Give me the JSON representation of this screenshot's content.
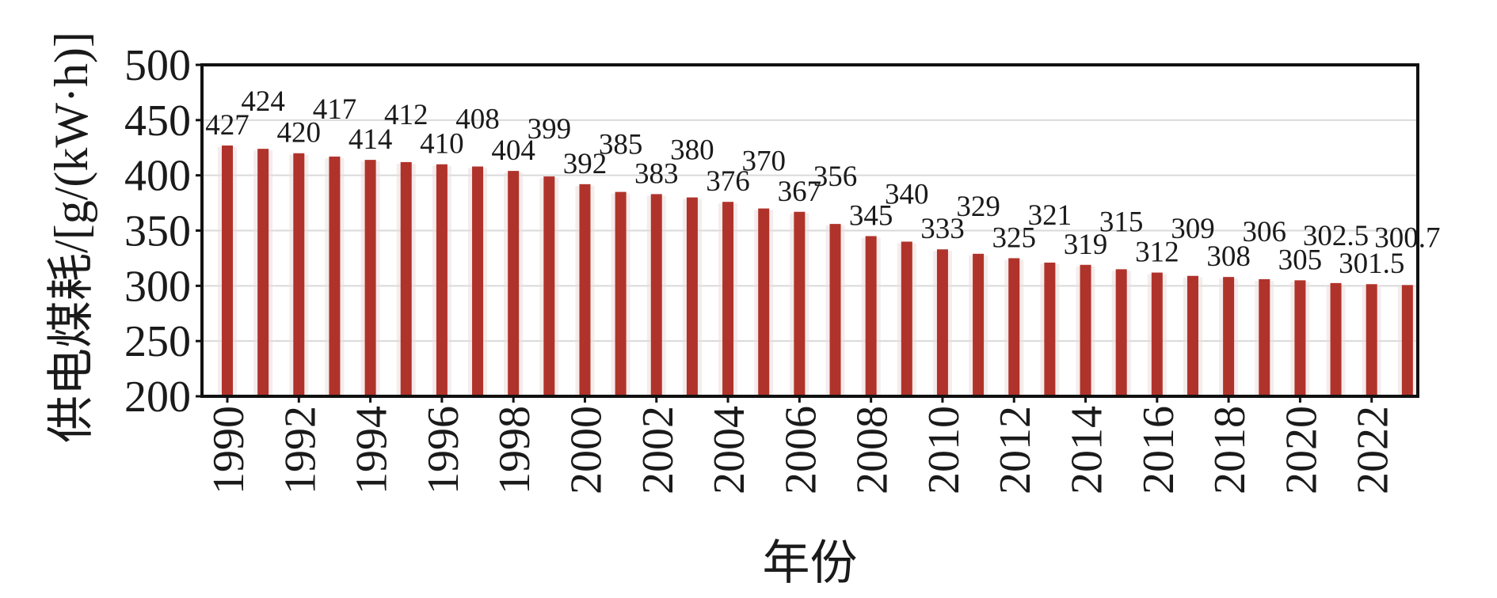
{
  "chart_data": {
    "type": "bar",
    "ylabel": "供电煤耗/[g/(kW·h)]",
    "xlabel": "年份",
    "ylim": [
      200,
      500
    ],
    "yticks": [
      200,
      250,
      300,
      350,
      400,
      450,
      500
    ],
    "grid": "horizontal",
    "colors": {
      "bar": "#b0332b",
      "frame": "#111111",
      "grid": "#d9d9d9"
    },
    "categories": [
      "1990",
      "1991",
      "1992",
      "1993",
      "1994",
      "1995",
      "1996",
      "1997",
      "1998",
      "1999",
      "2000",
      "2001",
      "2002",
      "2003",
      "2004",
      "2005",
      "2006",
      "2007",
      "2008",
      "2009",
      "2010",
      "2011",
      "2012",
      "2013",
      "2014",
      "2015",
      "2016",
      "2017",
      "2018",
      "2019",
      "2020",
      "2021",
      "2022",
      "2023"
    ],
    "tick_categories": [
      "1990",
      "1992",
      "1994",
      "1996",
      "1998",
      "2000",
      "2002",
      "2004",
      "2006",
      "2008",
      "2010",
      "2012",
      "2014",
      "2016",
      "2018",
      "2020",
      "2022"
    ],
    "values": [
      427,
      424,
      420,
      417,
      414,
      412,
      410,
      408,
      404,
      399,
      392,
      385,
      383,
      380,
      376,
      370,
      367,
      356,
      345,
      340,
      333,
      329,
      325,
      321,
      319,
      315,
      312,
      309,
      308,
      306,
      305,
      302.5,
      301.5,
      300.7
    ],
    "value_labels": [
      "427",
      "424",
      "420",
      "417",
      "414",
      "412",
      "410",
      "408",
      "404",
      "399",
      "392",
      "385",
      "383",
      "380",
      "376",
      "370",
      "367",
      "356",
      "345",
      "340",
      "333",
      "329",
      "325",
      "321",
      "319",
      "315",
      "312",
      "309",
      "308",
      "306",
      "305",
      "302.5",
      "301.5",
      "300.7"
    ]
  }
}
